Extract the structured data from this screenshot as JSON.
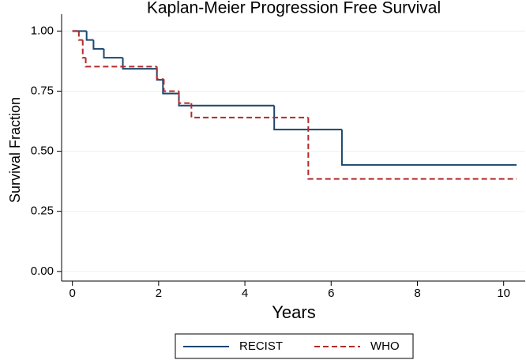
{
  "chart_data": {
    "type": "step",
    "title": "Kaplan-Meier Progression Free Survival",
    "x_label": "Years",
    "y_label": "Survival Fraction",
    "xlim": [
      -0.25,
      10.5
    ],
    "ylim": [
      -0.04,
      1.07
    ],
    "xticks": [
      0,
      2,
      4,
      6,
      8,
      10
    ],
    "yticks": [
      {
        "value": 0,
        "label": "0.00"
      },
      {
        "value": 0.25,
        "label": "0.25"
      },
      {
        "value": 0.5,
        "label": "0.50"
      },
      {
        "value": 0.75,
        "label": "0.75"
      },
      {
        "value": 1,
        "label": "1.00"
      }
    ],
    "grid": true,
    "legend": "bottom",
    "series": [
      {
        "name": "RECIST",
        "color": "#1a476f",
        "dash": false,
        "x": [
          0,
          0.33,
          0.49,
          0.73,
          1.17,
          1.96,
          2.1,
          2.47,
          4.68,
          6.25,
          10.3
        ],
        "values": [
          1,
          0.963,
          0.926,
          0.889,
          0.843,
          0.797,
          0.74,
          0.69,
          0.59,
          0.443,
          0.443
        ]
      },
      {
        "name": "WHO",
        "color": "#b22a2a",
        "dash": true,
        "x": [
          0,
          0.15,
          0.24,
          0.31,
          1.96,
          2.12,
          2.47,
          2.76,
          5.47,
          10.3
        ],
        "values": [
          1,
          0.963,
          0.889,
          0.852,
          0.8,
          0.75,
          0.7,
          0.64,
          0.385,
          0.385
        ]
      }
    ]
  }
}
